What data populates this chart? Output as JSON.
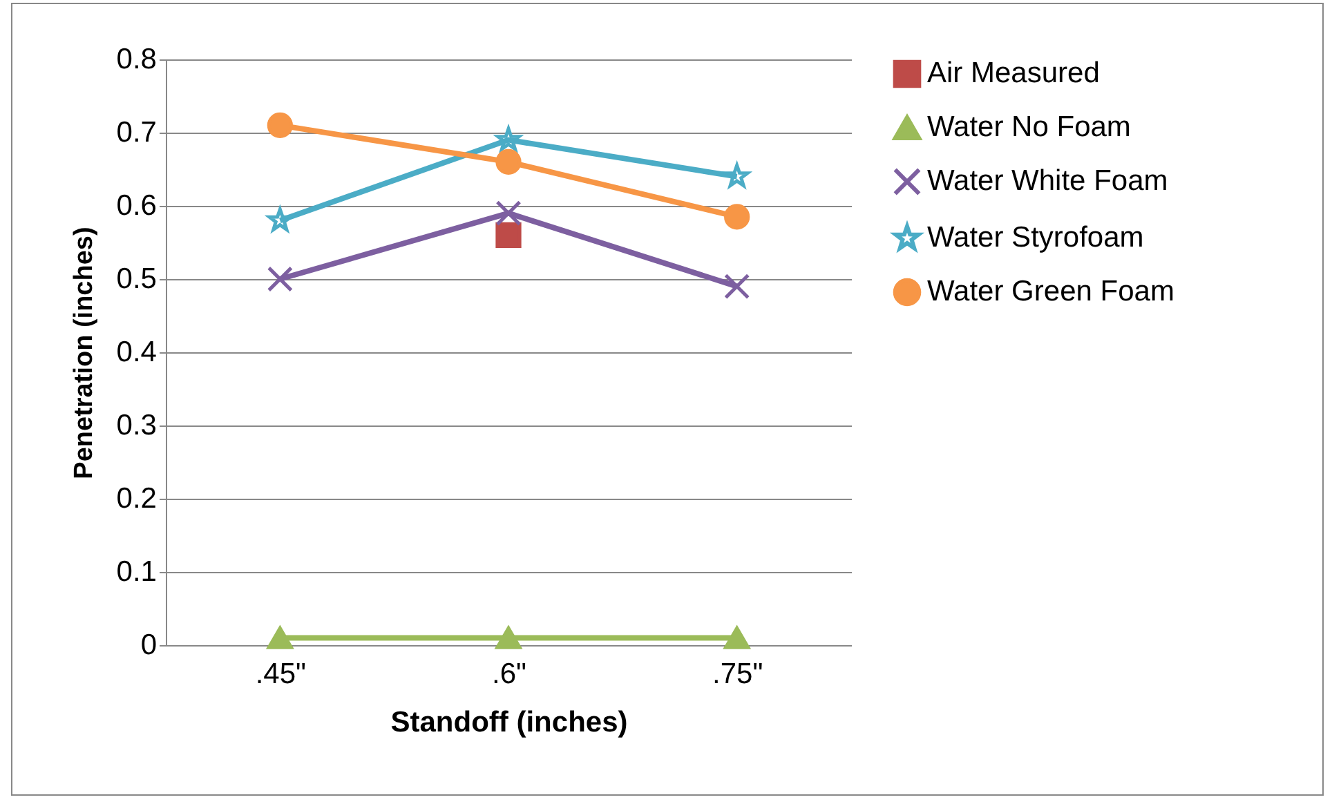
{
  "chart_data": {
    "type": "line",
    "xlabel": "Standoff (inches)",
    "ylabel": "Penetration (inches)",
    "categories": [
      ".45\"",
      ".6\"",
      ".75\""
    ],
    "series": [
      {
        "name": "Air Measured",
        "color": "#be4b48",
        "marker": "square",
        "values": [
          null,
          0.56,
          null
        ]
      },
      {
        "name": "Water No Foam",
        "color": "#9bbb59",
        "marker": "triangle",
        "values": [
          0.01,
          0.01,
          0.01
        ]
      },
      {
        "name": "Water White Foam",
        "color": "#7d5fa0",
        "marker": "cross",
        "values": [
          0.5,
          0.59,
          0.49
        ]
      },
      {
        "name": "Water Styrofoam",
        "color": "#4bacc6",
        "marker": "star",
        "values": [
          0.58,
          0.69,
          0.64
        ]
      },
      {
        "name": "Water Green Foam",
        "color": "#f79646",
        "marker": "circle",
        "values": [
          0.71,
          0.66,
          0.585
        ]
      }
    ],
    "ylim": [
      0,
      0.8
    ],
    "yticks": [
      0,
      0.1,
      0.2,
      0.3,
      0.4,
      0.5,
      0.6,
      0.7,
      0.8
    ],
    "grid": "y",
    "legend": "right"
  }
}
